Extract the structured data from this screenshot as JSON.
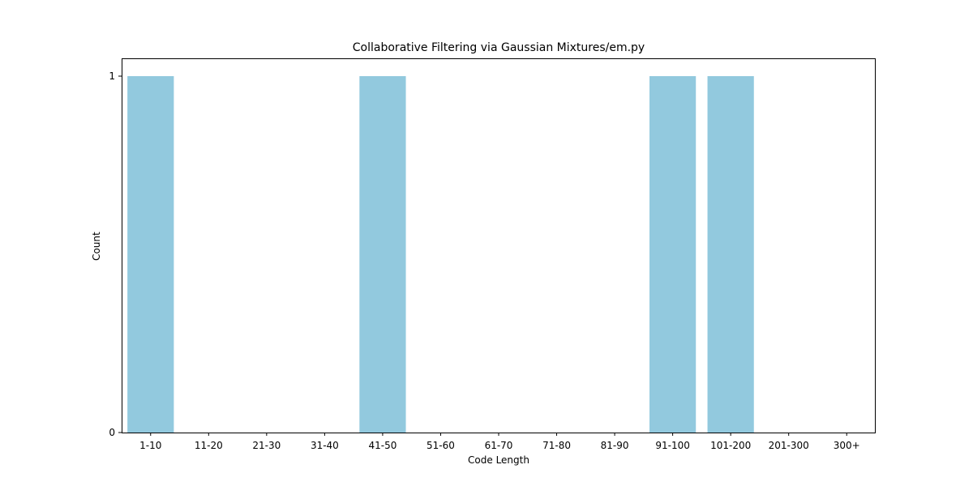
{
  "chart_data": {
    "type": "bar",
    "title": "Collaborative Filtering via Gaussian Mixtures/em.py",
    "xlabel": "Code Length",
    "ylabel": "Count",
    "categories": [
      "1-10",
      "11-20",
      "21-30",
      "31-40",
      "41-50",
      "51-60",
      "61-70",
      "71-80",
      "81-90",
      "91-100",
      "101-200",
      "201-300",
      "300+"
    ],
    "values": [
      1,
      0,
      0,
      0,
      1,
      0,
      0,
      0,
      0,
      1,
      1,
      0,
      0
    ],
    "yticks": [
      0,
      1
    ],
    "ylim": [
      0,
      1.05
    ],
    "grid": false,
    "bar_color": "#92c9de"
  }
}
